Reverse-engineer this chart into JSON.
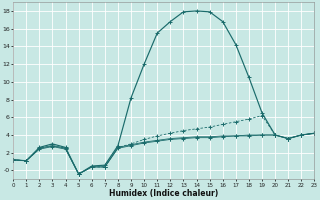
{
  "xlabel": "Humidex (Indice chaleur)",
  "bg_color": "#c8e8e4",
  "grid_color": "#aad4d0",
  "line_color": "#1a6b6b",
  "xlim": [
    0,
    23
  ],
  "ylim": [
    -1.0,
    19.0
  ],
  "xticks": [
    0,
    1,
    2,
    3,
    4,
    5,
    6,
    7,
    8,
    9,
    10,
    11,
    12,
    13,
    14,
    15,
    16,
    17,
    18,
    19,
    20,
    21,
    22,
    23
  ],
  "yticks": [
    0,
    2,
    4,
    6,
    8,
    10,
    12,
    14,
    16,
    18
  ],
  "ytick_labels": [
    "-0",
    "2",
    "4",
    "6",
    "8",
    "10",
    "12",
    "14",
    "16",
    "18"
  ],
  "line1_x": [
    0,
    1,
    2,
    3,
    4,
    5,
    6,
    7,
    8,
    9,
    10,
    11,
    12,
    13,
    14,
    15,
    16,
    17,
    18,
    19,
    20,
    21,
    22,
    23
  ],
  "line1_y": [
    1.2,
    1.1,
    2.6,
    3.0,
    2.6,
    -0.4,
    0.5,
    0.6,
    2.8,
    8.2,
    12.0,
    15.5,
    16.8,
    17.9,
    18.0,
    17.9,
    16.8,
    14.2,
    10.5,
    6.5,
    4.0,
    3.6,
    4.0,
    4.2
  ],
  "line2_x": [
    0,
    1,
    2,
    3,
    4,
    5,
    6,
    7,
    8,
    9,
    10,
    11,
    12,
    13,
    14,
    15,
    16,
    17,
    18,
    19,
    20,
    21,
    22,
    23
  ],
  "line2_y": [
    1.2,
    1.1,
    2.5,
    2.8,
    2.5,
    -0.4,
    0.4,
    0.4,
    2.6,
    3.0,
    3.5,
    3.9,
    4.2,
    4.5,
    4.7,
    4.9,
    5.2,
    5.5,
    5.8,
    6.2,
    4.0,
    3.6,
    4.0,
    4.2
  ],
  "line3_x": [
    0,
    1,
    2,
    3,
    4,
    5,
    6,
    7,
    8,
    9,
    10,
    11,
    12,
    13,
    14,
    15,
    16,
    17,
    18,
    19,
    20,
    21,
    22,
    23
  ],
  "line3_y": [
    1.2,
    1.1,
    2.5,
    2.8,
    2.5,
    -0.4,
    0.4,
    0.4,
    2.6,
    2.9,
    3.2,
    3.4,
    3.6,
    3.7,
    3.8,
    3.8,
    3.9,
    3.9,
    4.0,
    4.0,
    4.0,
    3.6,
    4.0,
    4.2
  ],
  "line4_x": [
    0,
    1,
    2,
    3,
    4,
    5,
    6,
    7,
    8,
    9,
    10,
    11,
    12,
    13,
    14,
    15,
    16,
    17,
    18,
    19,
    20,
    21,
    22,
    23
  ],
  "line4_y": [
    1.2,
    1.1,
    2.4,
    2.7,
    2.4,
    -0.4,
    0.4,
    0.4,
    2.5,
    2.8,
    3.1,
    3.3,
    3.5,
    3.6,
    3.7,
    3.7,
    3.8,
    3.9,
    3.9,
    4.0,
    4.0,
    3.6,
    4.0,
    4.2
  ]
}
